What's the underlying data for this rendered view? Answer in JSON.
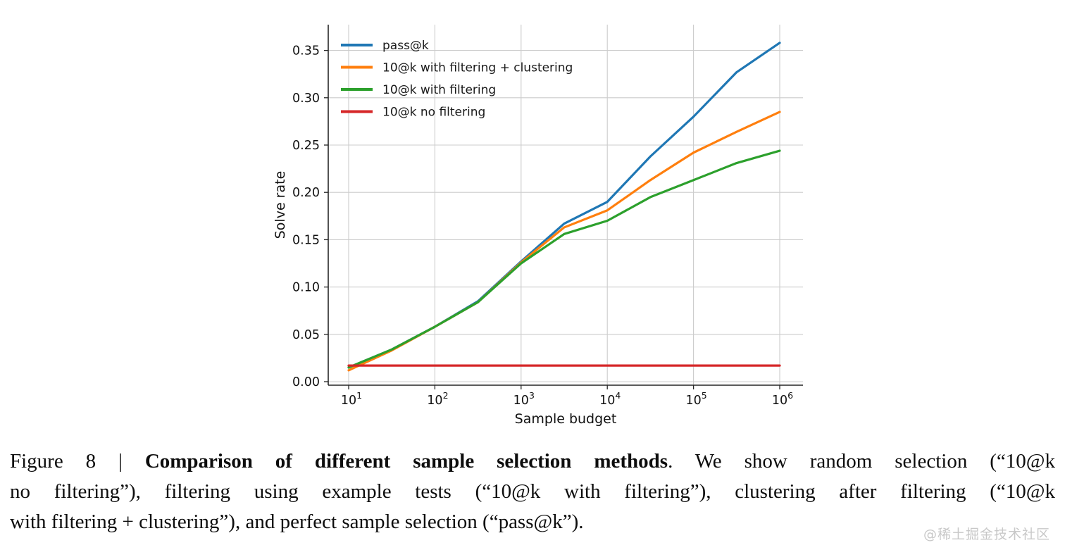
{
  "watermark": "@稀土掘金技术社区",
  "caption": {
    "line1_prefix": "Figure 8 | ",
    "line1_bold": "Comparison of different sample selection methods",
    "line1_suffix": ". We show random selection (“10@k",
    "line2": "no filtering”), filtering using example tests (“10@k with filtering”), clustering after filtering (“10@k",
    "line3": "with filtering + clustering”), and perfect sample selection (“pass@k”)."
  },
  "chart_data": {
    "type": "line",
    "title": "",
    "xlabel": "Sample budget",
    "ylabel": "Solve rate",
    "x_scale": "log",
    "x_tick_base": "10",
    "x_tick_exponents": [
      1,
      2,
      3,
      4,
      5,
      6
    ],
    "y_tick_labels": [
      "0.00",
      "0.05",
      "0.10",
      "0.15",
      "0.20",
      "0.25",
      "0.30",
      "0.35"
    ],
    "y_tick_values": [
      0.0,
      0.05,
      0.1,
      0.15,
      0.2,
      0.25,
      0.3,
      0.35
    ],
    "xlim_log10": [
      0.76,
      6.27
    ],
    "ylim": [
      -0.004,
      0.377
    ],
    "grid": true,
    "legend_position": "upper left",
    "x_log10": [
      1,
      1.5,
      2,
      2.5,
      3,
      3.5,
      4,
      4.5,
      5,
      5.5,
      6
    ],
    "series": [
      {
        "name": "pass@k",
        "color": "#1f77b4",
        "values": [
          0.015,
          0.034,
          0.058,
          0.085,
          0.127,
          0.167,
          0.19,
          0.238,
          0.28,
          0.327,
          0.358
        ]
      },
      {
        "name": "10@k with filtering + clustering",
        "color": "#ff7f0e",
        "values": [
          0.012,
          0.033,
          0.058,
          0.084,
          0.126,
          0.163,
          0.181,
          0.213,
          0.242,
          0.264,
          0.285
        ]
      },
      {
        "name": "10@k with filtering",
        "color": "#2ca02c",
        "values": [
          0.015,
          0.034,
          0.058,
          0.084,
          0.125,
          0.156,
          0.17,
          0.195,
          0.213,
          0.231,
          0.244
        ]
      },
      {
        "name": "10@k no filtering",
        "color": "#d62728",
        "values": [
          0.017,
          0.017,
          0.017,
          0.017,
          0.017,
          0.017,
          0.017,
          0.017,
          0.017,
          0.017,
          0.017
        ]
      }
    ],
    "colors": {
      "grid": "#cccccc",
      "spine": "#262626",
      "tick_label": "#111111",
      "legend_text": "#1a1a1a"
    }
  }
}
